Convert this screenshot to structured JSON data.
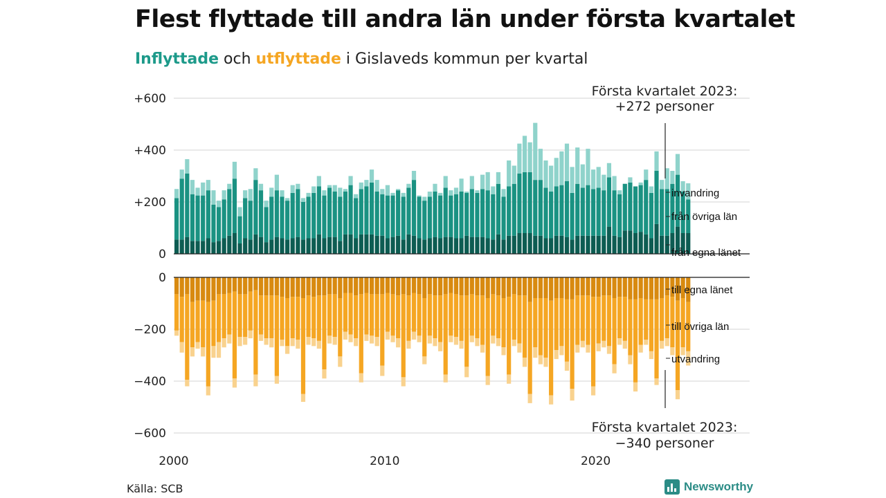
{
  "title": "Flest flyttade till andra län under första kvartalet",
  "subtitle": {
    "part1": "Inflyttade",
    "part2": " och ",
    "part3": "utflyttade",
    "part4": " i Gislaveds kommun per kvartal"
  },
  "source": "Källa: SCB",
  "brand": "Newsworthy",
  "colors": {
    "in_egna": "#0d5c52",
    "in_ovriga": "#1a9282",
    "in_invandring": "#8fd3cb",
    "out_egna": "#d88a10",
    "out_ovriga": "#f5a623",
    "out_utvandring": "#f9d28e",
    "grid": "#e2e2e2"
  },
  "chart_data": {
    "type": "bar",
    "stacked": true,
    "grid": true,
    "x_ticks": [
      "2000",
      "2010",
      "2020"
    ],
    "y_ticks_upper": [
      "+600",
      "+400",
      "+200",
      "0"
    ],
    "y_ticks_lower": [
      "0",
      "−200",
      "−400",
      "−600"
    ],
    "ylim_upper": [
      0,
      600
    ],
    "ylim_lower": [
      -600,
      0
    ],
    "series_labels": {
      "invandring": "invandring",
      "ovriga_in": "från övriga län",
      "egna_in": "från egna länet",
      "egna_out": "till egna länet",
      "ovriga_out": "till övriga län",
      "utvandring": "utvandring"
    },
    "annotation_upper": {
      "line1": "Första kvartalet 2023:",
      "line2": "+272 personer"
    },
    "annotation_lower": {
      "line1": "Första kvartalet 2023:",
      "line2": "−340 personer"
    },
    "first_quarter": "2000 Q1",
    "last_quarter": "2023 Q1",
    "in_total": [
      250,
      325,
      365,
      285,
      255,
      275,
      285,
      245,
      205,
      245,
      270,
      355,
      180,
      245,
      250,
      330,
      270,
      205,
      255,
      305,
      245,
      215,
      265,
      270,
      215,
      235,
      260,
      300,
      245,
      265,
      265,
      255,
      250,
      300,
      230,
      275,
      285,
      325,
      285,
      250,
      265,
      235,
      250,
      235,
      270,
      320,
      225,
      220,
      240,
      270,
      235,
      300,
      245,
      255,
      290,
      240,
      300,
      245,
      305,
      315,
      260,
      315,
      250,
      360,
      340,
      425,
      455,
      430,
      505,
      405,
      360,
      340,
      370,
      395,
      425,
      335,
      410,
      345,
      405,
      325,
      335,
      305,
      350,
      300,
      245,
      270,
      295,
      260,
      275,
      325,
      260,
      395,
      285,
      330,
      320,
      385,
      280,
      272
    ],
    "in_ovriga": [
      160,
      235,
      245,
      180,
      175,
      175,
      185,
      145,
      130,
      150,
      180,
      210,
      105,
      155,
      150,
      210,
      180,
      135,
      165,
      180,
      160,
      150,
      175,
      185,
      145,
      160,
      175,
      185,
      165,
      190,
      175,
      170,
      165,
      190,
      155,
      175,
      185,
      200,
      170,
      160,
      165,
      160,
      175,
      165,
      180,
      215,
      160,
      150,
      160,
      175,
      165,
      190,
      160,
      170,
      180,
      165,
      185,
      170,
      185,
      185,
      175,
      195,
      165,
      190,
      200,
      230,
      235,
      235,
      215,
      215,
      195,
      180,
      190,
      195,
      215,
      180,
      200,
      185,
      195,
      180,
      185,
      175,
      190,
      175,
      165,
      180,
      185,
      180,
      180,
      210,
      175,
      205,
      180,
      180,
      190,
      200,
      160,
      130
    ],
    "in_egna": [
      55,
      55,
      65,
      50,
      50,
      50,
      60,
      45,
      50,
      60,
      70,
      80,
      40,
      60,
      55,
      75,
      65,
      45,
      55,
      65,
      60,
      55,
      60,
      65,
      55,
      60,
      60,
      75,
      60,
      65,
      65,
      50,
      75,
      75,
      60,
      75,
      75,
      75,
      70,
      70,
      60,
      65,
      70,
      55,
      75,
      70,
      60,
      55,
      60,
      65,
      60,
      65,
      65,
      60,
      60,
      70,
      65,
      65,
      65,
      60,
      55,
      75,
      55,
      70,
      70,
      80,
      80,
      80,
      70,
      70,
      60,
      60,
      70,
      70,
      65,
      55,
      70,
      70,
      70,
      70,
      70,
      70,
      105,
      70,
      65,
      90,
      90,
      80,
      85,
      75,
      60,
      115,
      70,
      70,
      80,
      105,
      80,
      80
    ],
    "out_total": [
      -225,
      -290,
      -420,
      -305,
      -275,
      -305,
      -455,
      -310,
      -310,
      -270,
      -255,
      -425,
      -265,
      -260,
      -235,
      -420,
      -245,
      -260,
      -270,
      -410,
      -265,
      -295,
      -265,
      -275,
      -480,
      -260,
      -265,
      -275,
      -390,
      -255,
      -260,
      -345,
      -240,
      -250,
      -265,
      -405,
      -245,
      -255,
      -265,
      -380,
      -240,
      -250,
      -270,
      -420,
      -275,
      -240,
      -250,
      -335,
      -255,
      -265,
      -285,
      -405,
      -250,
      -260,
      -275,
      -385,
      -250,
      -265,
      -290,
      -415,
      -255,
      -265,
      -300,
      -410,
      -265,
      -290,
      -345,
      -485,
      -310,
      -335,
      -345,
      -490,
      -315,
      -300,
      -360,
      -475,
      -290,
      -270,
      -290,
      -455,
      -285,
      -270,
      -295,
      -370,
      -260,
      -275,
      -335,
      -440,
      -290,
      -260,
      -315,
      -415,
      -275,
      -265,
      -300,
      -470,
      -300,
      -340
    ],
    "out_ovriga": [
      -140,
      -175,
      -330,
      -175,
      -160,
      -180,
      -325,
      -175,
      -185,
      -170,
      -160,
      -335,
      -165,
      -165,
      -150,
      -325,
      -150,
      -165,
      -165,
      -310,
      -165,
      -185,
      -160,
      -165,
      -370,
      -160,
      -160,
      -175,
      -285,
      -160,
      -165,
      -225,
      -150,
      -160,
      -165,
      -305,
      -160,
      -160,
      -165,
      -275,
      -150,
      -160,
      -165,
      -320,
      -175,
      -150,
      -160,
      -225,
      -160,
      -165,
      -180,
      -310,
      -165,
      -165,
      -175,
      -275,
      -160,
      -165,
      -190,
      -300,
      -160,
      -165,
      -190,
      -300,
      -175,
      -185,
      -240,
      -355,
      -190,
      -220,
      -230,
      -365,
      -200,
      -185,
      -240,
      -345,
      -190,
      -175,
      -190,
      -345,
      -180,
      -175,
      -195,
      -255,
      -160,
      -170,
      -215,
      -320,
      -180,
      -155,
      -200,
      -305,
      -165,
      -165,
      -195,
      -345,
      -190,
      -190
    ],
    "out_egna": [
      -65,
      -75,
      -65,
      -95,
      -90,
      -90,
      -95,
      -90,
      -65,
      -65,
      -60,
      -55,
      -65,
      -65,
      -55,
      -50,
      -70,
      -70,
      -70,
      -70,
      -75,
      -80,
      -75,
      -75,
      -80,
      -70,
      -75,
      -70,
      -70,
      -65,
      -65,
      -80,
      -60,
      -60,
      -70,
      -65,
      -60,
      -65,
      -65,
      -65,
      -60,
      -65,
      -70,
      -65,
      -70,
      -60,
      -65,
      -80,
      -65,
      -70,
      -70,
      -65,
      -60,
      -65,
      -70,
      -70,
      -65,
      -70,
      -70,
      -80,
      -65,
      -70,
      -80,
      -75,
      -65,
      -70,
      -70,
      -95,
      -80,
      -80,
      -80,
      -90,
      -80,
      -80,
      -85,
      -85,
      -70,
      -70,
      -70,
      -75,
      -75,
      -70,
      -70,
      -80,
      -75,
      -75,
      -85,
      -85,
      -80,
      -85,
      -85,
      -85,
      -80,
      -70,
      -75,
      -90,
      -80,
      -95
    ]
  }
}
